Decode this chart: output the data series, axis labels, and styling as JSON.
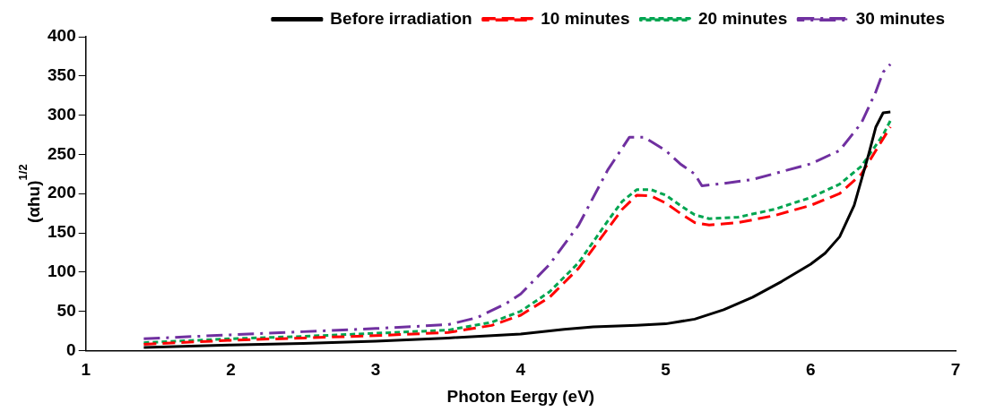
{
  "chart_data": {
    "type": "line",
    "xlabel": "Photon Eergy (eV)",
    "ylabel": "(αhu)$^{1/2}$",
    "xlim": [
      1,
      7
    ],
    "xticks": [
      1,
      2,
      3,
      4,
      5,
      6,
      7
    ],
    "ylim": [
      0,
      400
    ],
    "yticks": [
      0,
      50,
      100,
      150,
      200,
      250,
      300,
      350,
      400
    ],
    "grid": false,
    "legend": "top right",
    "marker": "none",
    "series": [
      {
        "name": "Before irradiation",
        "color": "#000000",
        "line_style": "solid",
        "x": [
          1.4,
          2,
          2.5,
          3,
          3.5,
          4,
          4.3,
          4.5,
          4.8,
          5.0,
          5.2,
          5.4,
          5.6,
          5.8,
          6.0,
          6.1,
          6.2,
          6.3,
          6.4,
          6.45,
          6.5,
          6.55
        ],
        "values": [
          4,
          7,
          9,
          12,
          16,
          21,
          27,
          30,
          32,
          34,
          40,
          52,
          68,
          88,
          110,
          124,
          145,
          185,
          250,
          285,
          303,
          304
        ]
      },
      {
        "name": "10 minutes",
        "color": "#ff0000",
        "line_style": "dashed",
        "x": [
          1.4,
          2,
          2.5,
          3,
          3.5,
          3.6,
          3.8,
          4.0,
          4.2,
          4.4,
          4.6,
          4.7,
          4.8,
          4.9,
          5.0,
          5.1,
          5.2,
          5.3,
          5.5,
          5.75,
          6.0,
          6.2,
          6.35,
          6.5,
          6.55
        ],
        "values": [
          8,
          13,
          16,
          19,
          23,
          26,
          32,
          45,
          68,
          105,
          155,
          180,
          198,
          197,
          188,
          175,
          163,
          160,
          163,
          172,
          185,
          200,
          225,
          270,
          285
        ]
      },
      {
        "name": "20 minutes",
        "color": "#00a550",
        "line_style": "dotted",
        "x": [
          1.4,
          2,
          2.5,
          3,
          3.5,
          3.8,
          4.0,
          4.2,
          4.4,
          4.6,
          4.7,
          4.8,
          4.9,
          5.0,
          5.1,
          5.2,
          5.3,
          5.5,
          5.75,
          6.0,
          6.2,
          6.35,
          6.5,
          6.55
        ],
        "values": [
          10,
          15,
          18,
          22,
          26,
          36,
          50,
          75,
          112,
          165,
          190,
          205,
          205,
          198,
          185,
          173,
          168,
          170,
          180,
          195,
          212,
          235,
          275,
          293
        ]
      },
      {
        "name": "30 minutes",
        "color": "#7030a0",
        "line_style": "dashdot",
        "x": [
          1.4,
          2,
          2.5,
          3,
          3.5,
          3.7,
          3.9,
          4.0,
          4.2,
          4.4,
          4.6,
          4.75,
          4.85,
          5.0,
          5.1,
          5.2,
          5.25,
          5.4,
          5.6,
          5.8,
          6.0,
          6.2,
          6.35,
          6.45,
          6.5,
          6.55
        ],
        "values": [
          15,
          20,
          24,
          28,
          33,
          42,
          60,
          72,
          110,
          160,
          230,
          272,
          272,
          255,
          238,
          225,
          210,
          213,
          218,
          228,
          238,
          255,
          290,
          330,
          355,
          365
        ]
      }
    ]
  }
}
